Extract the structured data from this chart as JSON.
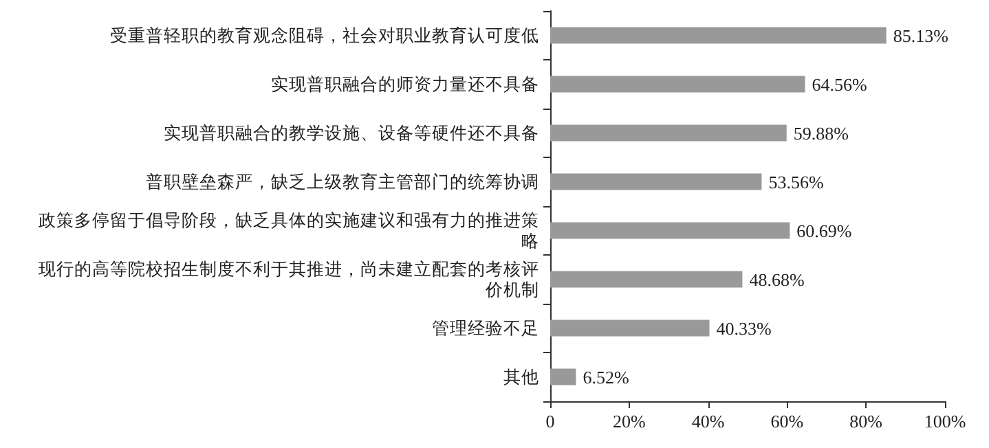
{
  "chart_data": {
    "type": "bar",
    "orientation": "horizontal",
    "categories": [
      "受重普轻职的教育观念阻碍，社会对职业教育认可度低",
      "实现普职融合的师资力量还不具备",
      "实现普职融合的教学设施、设备等硬件还不具备",
      "普职壁垒森严，缺乏上级教育主管部门的统筹协调",
      "政策多停留于倡导阶段，缺乏具体的实施建议和强有力的推进策略",
      "现行的高等院校招生制度不利于其推进，尚未建立配套的考核评价机制",
      "管理经验不足",
      "其他"
    ],
    "values": [
      85.13,
      64.56,
      59.88,
      53.56,
      60.69,
      48.68,
      40.33,
      6.52
    ],
    "value_labels": [
      "85.13%",
      "64.56%",
      "59.88%",
      "53.56%",
      "60.69%",
      "48.68%",
      "40.33%",
      "6.52%"
    ],
    "color": "#999999",
    "xlim": [
      0,
      100
    ],
    "xticks": [
      {
        "value": 0,
        "label": "0"
      },
      {
        "value": 20,
        "label": "20%"
      },
      {
        "value": 40,
        "label": "40%"
      },
      {
        "value": 60,
        "label": "60%"
      },
      {
        "value": 80,
        "label": "80%"
      },
      {
        "value": 100,
        "label": "100%"
      }
    ],
    "grid": false
  }
}
